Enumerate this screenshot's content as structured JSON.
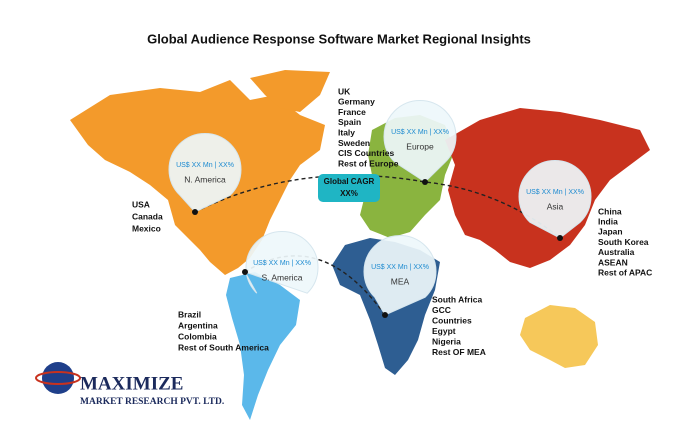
{
  "header": {
    "title": "Global Audience Response Software Market Regional Insights"
  },
  "center": {
    "line1": "Global CAGR",
    "line2": "XX%"
  },
  "regions": [
    {
      "name": "N. America",
      "value": "US$ XX Mn | XX%",
      "countries": [
        "USA",
        "Canada",
        "Mexico"
      ]
    },
    {
      "name": "Europe",
      "value": "US$ XX Mn | XX%",
      "countries": [
        "UK",
        "Germany",
        "France",
        "Spain",
        "Italy",
        "Sweden",
        "CIS Countries",
        "Rest of Europe"
      ]
    },
    {
      "name": "Asia",
      "value": "US$ XX Mn | XX%",
      "countries": [
        "China",
        "India",
        "Japan",
        "South Korea",
        "Australia",
        "ASEAN",
        "Rest of APAC"
      ]
    },
    {
      "name": "S. America",
      "value": "US$ XX Mn | XX%",
      "countries": [
        "Brazil",
        "Argentina",
        "Colombia",
        "Rest of South America"
      ]
    },
    {
      "name": "MEA",
      "value": "US$ XX Mn | XX%",
      "countries": [
        "South Africa",
        "GCC",
        "Countries",
        "Egypt",
        "Nigeria",
        "Rest OF MEA"
      ]
    }
  ],
  "logo": {
    "name": "MAXIMIZE",
    "subtitle": "MARKET RESEARCH PVT. LTD."
  }
}
